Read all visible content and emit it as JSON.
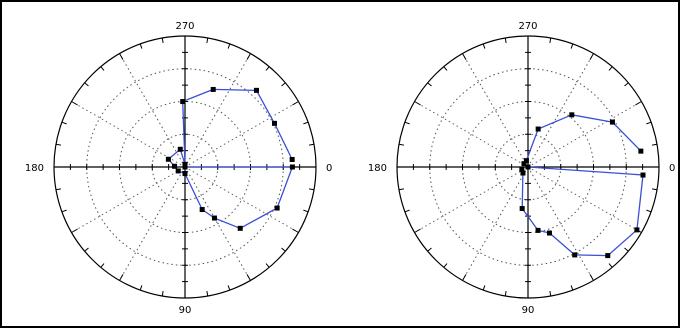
{
  "colors": {
    "series": "#3a4fd6",
    "marker": "#000000",
    "axis": "#000000",
    "grid": "#555555",
    "background": "#ffffff"
  },
  "chart_data": [
    {
      "type": "polar-line",
      "title": "",
      "angle_unit": "degrees",
      "angle_direction": "clockwise",
      "angle_zero": "right",
      "angle_ticks": [
        "0",
        "90",
        "180",
        "270"
      ],
      "r_max": 1,
      "grid": true,
      "grid_rings": 4,
      "grid_spokes_deg": 30,
      "series": [
        {
          "points": [
            {
              "angle": 0,
              "r": 0.0
            },
            {
              "angle": 0,
              "r": 0.82
            },
            {
              "angle": 24,
              "r": 0.77
            },
            {
              "angle": 48,
              "r": 0.63
            },
            {
              "angle": 60,
              "r": 0.45
            },
            {
              "angle": 68,
              "r": 0.35
            },
            {
              "angle": 90,
              "r": 0.05
            },
            {
              "angle": 150,
              "r": 0.06
            },
            {
              "angle": 184,
              "r": 0.08
            },
            {
              "angle": 205,
              "r": 0.14
            },
            {
              "angle": 255,
              "r": 0.14
            },
            {
              "angle": 270,
              "r": 0.02
            },
            {
              "angle": 268,
              "r": 0.5
            },
            {
              "angle": 290,
              "r": 0.63
            },
            {
              "angle": 313,
              "r": 0.8
            },
            {
              "angle": 334,
              "r": 0.76
            },
            {
              "angle": 356,
              "r": 0.82
            }
          ]
        }
      ]
    },
    {
      "type": "polar-line",
      "title": "",
      "angle_unit": "degrees",
      "angle_direction": "clockwise",
      "angle_zero": "right",
      "angle_ticks": [
        "0",
        "90",
        "180",
        "270"
      ],
      "r_max": 1,
      "grid": true,
      "grid_rings": 4,
      "grid_spokes_deg": 30,
      "series": [
        {
          "points": [
            {
              "angle": 0,
              "r": 0.0
            },
            {
              "angle": 4,
              "r": 0.88
            },
            {
              "angle": 30,
              "r": 0.96
            },
            {
              "angle": 48,
              "r": 0.91
            },
            {
              "angle": 62,
              "r": 0.76
            },
            {
              "angle": 72,
              "r": 0.53
            },
            {
              "angle": 81,
              "r": 0.49
            },
            {
              "angle": 98,
              "r": 0.32
            },
            {
              "angle": 130,
              "r": 0.06
            },
            {
              "angle": 160,
              "r": 0.05
            },
            {
              "angle": 220,
              "r": 0.04
            },
            {
              "angle": 256,
              "r": 0.05
            },
            {
              "angle": 285,
              "r": 0.3
            },
            {
              "angle": 310,
              "r": 0.52
            },
            {
              "angle": 332,
              "r": 0.73
            },
            {
              "angle": 352,
              "r": 0.87
            }
          ]
        }
      ]
    }
  ]
}
